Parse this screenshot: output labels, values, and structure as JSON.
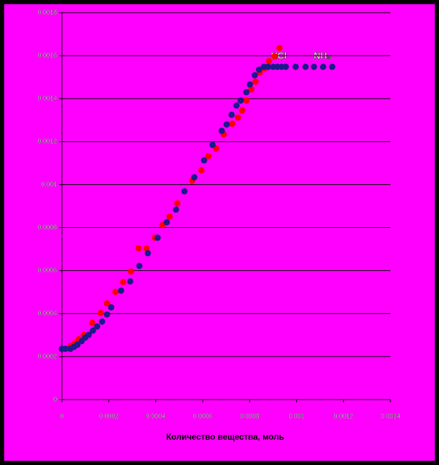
{
  "chart_data": {
    "type": "scatter",
    "x_label": "Количество вещества, моль",
    "annotations": [
      "HCl",
      "NH₃"
    ],
    "xlim": [
      0,
      0.0014
    ],
    "xticks": [
      0,
      0.0002,
      0.0004,
      0.0006,
      0.0008,
      0.001,
      0.0012,
      0.0014
    ],
    "ylim": [
      0,
      0.0018
    ],
    "yticks": [
      0,
      0.0002,
      0.0004,
      0.0006,
      0.0008,
      0.001,
      0.0012,
      0.0014,
      0.0016,
      0.0018
    ],
    "grid": true,
    "series": [
      {
        "color": "#ff0000",
        "x": [
          0,
          3.6e-05,
          5.4e-05,
          7.2e-05,
          9.3e-05,
          0.000129,
          0.000165,
          0.000192,
          0.000228,
          0.000261,
          0.000294,
          0.000327,
          0.00036,
          0.000396,
          0.000429,
          0.000459,
          0.000492,
          0.000555,
          0.000594,
          0.000624,
          0.000657,
          0.00069,
          0.000726,
          0.00075,
          0.000768,
          0.000786,
          0.000807,
          0.000825,
          0.000843,
          0.000864,
          0.000882,
          0.000906,
          0.000927
        ],
        "values": [
          0.000236,
          0.000249,
          0.000262,
          0.000281,
          0.000301,
          0.000357,
          0.000403,
          0.000448,
          0.000501,
          0.000547,
          0.000596,
          0.000704,
          0.000704,
          0.000753,
          0.000812,
          0.000851,
          0.000913,
          0.001018,
          0.001067,
          0.001132,
          0.001168,
          0.001234,
          0.001283,
          0.001312,
          0.001345,
          0.001391,
          0.001443,
          0.001479,
          0.001522,
          0.001541,
          0.001574,
          0.001597,
          0.001636
        ]
      },
      {
        "color": "#1a1a8c",
        "x": [
          0,
          1.5e-05,
          3.6e-05,
          5.1e-05,
          6.6e-05,
          8.4e-05,
          9.9e-05,
          0.000114,
          0.000132,
          0.00015,
          0.000171,
          0.000192,
          0.00021,
          0.000252,
          0.000291,
          0.00033,
          0.000366,
          0.000408,
          0.000447,
          0.000486,
          0.000522,
          0.000564,
          0.000606,
          0.000642,
          0.000681,
          0.000702,
          0.000723,
          0.000744,
          0.000762,
          0.000786,
          0.000801,
          0.000822,
          0.00084,
          0.000861,
          0.000879,
          0.0009,
          0.000918,
          0.000936,
          0.000954,
          0.000996,
          0.001038,
          0.001074,
          0.001113,
          0.001152
        ],
        "values": [
          0.000236,
          0.000236,
          0.000236,
          0.000245,
          0.000255,
          0.000272,
          0.000288,
          0.000301,
          0.000321,
          0.00034,
          0.000363,
          0.000396,
          0.000429,
          0.000507,
          0.00055,
          0.000622,
          0.000681,
          0.000753,
          0.000825,
          0.000884,
          0.000969,
          0.001034,
          0.001113,
          0.001185,
          0.00125,
          0.00128,
          0.001325,
          0.001368,
          0.001391,
          0.00143,
          0.001466,
          0.001509,
          0.001535,
          0.001548,
          0.001548,
          0.001548,
          0.001548,
          0.001548,
          0.001548,
          0.001548,
          0.001548,
          0.001548,
          0.001548,
          0.001548
        ]
      }
    ]
  }
}
